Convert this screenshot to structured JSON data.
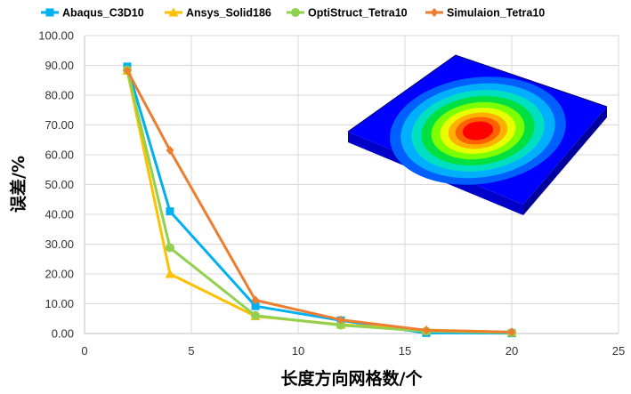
{
  "chart_data": {
    "type": "line",
    "xlabel": "长度方向网格数/个",
    "ylabel": "误差/%",
    "xlim": [
      0,
      25
    ],
    "ylim": [
      0,
      100
    ],
    "x_ticks": [
      "0",
      "5",
      "10",
      "15",
      "20",
      "25"
    ],
    "y_ticks": [
      "0.00",
      "10.00",
      "20.00",
      "30.00",
      "40.00",
      "50.00",
      "60.00",
      "70.00",
      "80.00",
      "90.00",
      "100.00"
    ],
    "grid": true,
    "legend_position": "top",
    "series": [
      {
        "name": "Abaqus_C3D10",
        "color": "#00b0f0",
        "marker": "square",
        "points": [
          [
            2,
            89.6
          ],
          [
            4,
            41.0
          ],
          [
            8,
            9.2
          ],
          [
            12,
            4.4
          ],
          [
            16,
            0.2
          ],
          [
            20,
            0.1
          ]
        ]
      },
      {
        "name": "Ansys_Solid186",
        "color": "#ffc000",
        "marker": "triangle",
        "points": [
          [
            2,
            88.2
          ],
          [
            4,
            20.0
          ],
          [
            8,
            5.8
          ],
          [
            12,
            3.0
          ],
          [
            16,
            1.2
          ],
          [
            20,
            0.4
          ]
        ]
      },
      {
        "name": "OptiStruct_Tetra10",
        "color": "#92d050",
        "marker": "circle",
        "points": [
          [
            2,
            88.5
          ],
          [
            4,
            28.8
          ],
          [
            8,
            6.0
          ],
          [
            12,
            2.8
          ],
          [
            16,
            0.8
          ],
          [
            20,
            0.3
          ]
        ]
      },
      {
        "name": "Simulaion_Tetra10",
        "color": "#ed7d31",
        "marker": "diamond",
        "points": [
          [
            2,
            88.3
          ],
          [
            4,
            61.5
          ],
          [
            8,
            11.2
          ],
          [
            12,
            4.6
          ],
          [
            16,
            1.1
          ],
          [
            20,
            0.5
          ]
        ]
      }
    ]
  }
}
